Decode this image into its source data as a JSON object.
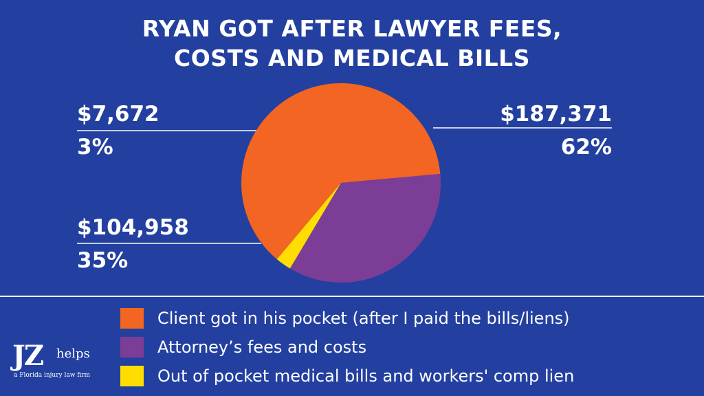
{
  "chart_data": {
    "type": "pie",
    "title": "RYAN GOT AFTER LAWYER FEES, COSTS AND MEDICAL BILLS",
    "title_lines": [
      "RYAN GOT AFTER LAWYER FEES,",
      "COSTS AND MEDICAL BILLS"
    ],
    "slices": [
      {
        "label": "Client got in his pocket (after I paid the bills/liens)",
        "value": 187371,
        "amount_label": "$187,371",
        "percent": 62,
        "percent_label": "62%",
        "color": "#f26522"
      },
      {
        "label": "Attorney’s fees and costs",
        "value": 104958,
        "amount_label": "$104,958",
        "percent": 35,
        "percent_label": "35%",
        "color": "#7c3d97"
      },
      {
        "label": "Out of pocket medical bills and workers' comp lien",
        "value": 7672,
        "amount_label": "$7,672",
        "percent": 3,
        "percent_label": "3%",
        "color": "#ffdd00"
      }
    ],
    "legend_placement": "bottom"
  },
  "logo": {
    "mark": "JZ",
    "word": "helps",
    "tagline": "a Florida injury law firm"
  },
  "colors": {
    "background": "#2340a0",
    "text": "#ffffff"
  }
}
